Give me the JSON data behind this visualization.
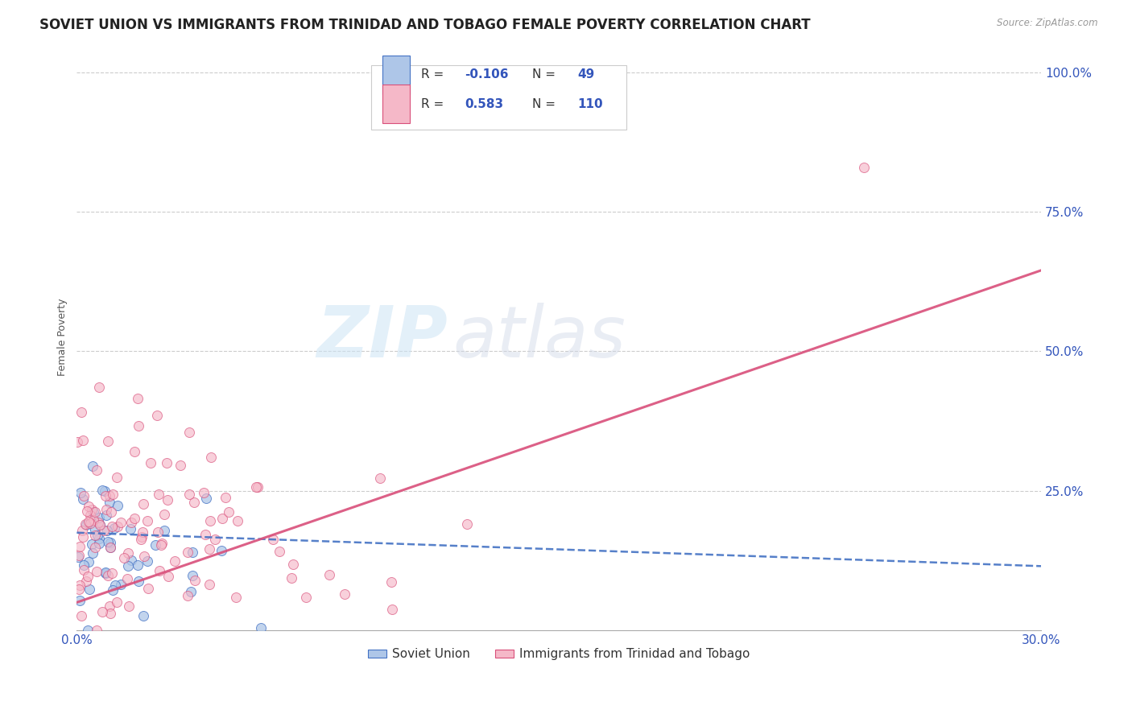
{
  "title": "SOVIET UNION VS IMMIGRANTS FROM TRINIDAD AND TOBAGO FEMALE POVERTY CORRELATION CHART",
  "source": "Source: ZipAtlas.com",
  "ylabel": "Female Poverty",
  "xlim": [
    0.0,
    0.3
  ],
  "ylim": [
    0.0,
    1.05
  ],
  "ytick_vals": [
    0.0,
    0.25,
    0.5,
    0.75,
    1.0
  ],
  "ytick_labels": [
    "",
    "25.0%",
    "50.0%",
    "75.0%",
    "100.0%"
  ],
  "xtick_vals": [
    0.0,
    0.05,
    0.1,
    0.15,
    0.2,
    0.25,
    0.3
  ],
  "xtick_labels": [
    "0.0%",
    "",
    "",
    "",
    "",
    "",
    "30.0%"
  ],
  "legend1_label": "Soviet Union",
  "legend2_label": "Immigrants from Trinidad and Tobago",
  "R1": "-0.106",
  "N1": "49",
  "R2": "0.583",
  "N2": "110",
  "color1": "#aec6e8",
  "color2": "#f5b8c8",
  "line1_color": "#4472c4",
  "line2_color": "#d94f7a",
  "watermark_zip": "ZIP",
  "watermark_atlas": "atlas",
  "title_fontsize": 12,
  "axis_label_fontsize": 9,
  "tick_fontsize": 11,
  "tick_color": "#3355bb",
  "su_trend_x0": 0.0,
  "su_trend_y0": 0.175,
  "su_trend_x1": 0.3,
  "su_trend_y1": 0.115,
  "tt_trend_x0": 0.0,
  "tt_trend_y0": 0.05,
  "tt_trend_x1": 0.3,
  "tt_trend_y1": 0.645
}
